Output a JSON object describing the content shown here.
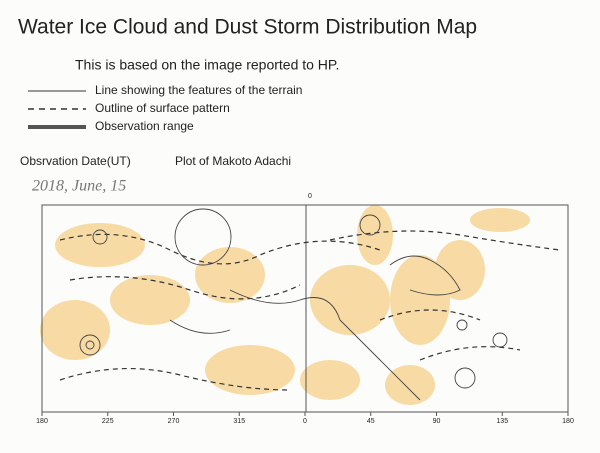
{
  "header": {
    "title": "Water Ice Cloud and Dust Storm Distribution Map",
    "subtitle": "This is based on the image reported to HP."
  },
  "legend": [
    {
      "label": "Line showing the features of the terrain"
    },
    {
      "label": "Outline of surface pattern"
    },
    {
      "label": "Observation range"
    }
  ],
  "observation": {
    "date_label": "Obsrvation Date(UT)",
    "author": "Plot of Makoto Adachi",
    "date": "2018, June, 15"
  },
  "map": {
    "top_label": "0",
    "longitude_ticks": [
      "180",
      "225",
      "270",
      "315",
      "0",
      "45",
      "90",
      "135",
      "180"
    ]
  }
}
